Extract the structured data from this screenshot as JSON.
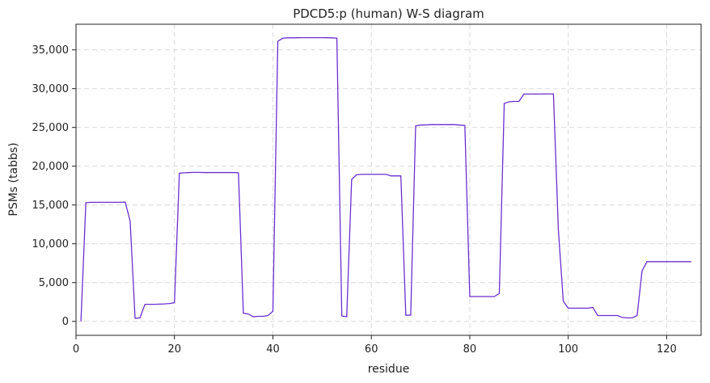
{
  "chart_data": {
    "type": "line",
    "title": "PDCD5:p (human) W-S diagram",
    "xlabel": "residue",
    "ylabel": "PSMs (tabbs)",
    "xlim": [
      0,
      127
    ],
    "ylim": [
      -1800,
      38300
    ],
    "xticks": [
      0,
      20,
      40,
      60,
      80,
      100,
      120
    ],
    "yticks": [
      0,
      5000,
      10000,
      15000,
      20000,
      25000,
      30000,
      35000
    ],
    "ytick_labels": [
      "0",
      "5,000",
      "10,000",
      "15,000",
      "20,000",
      "25,000",
      "30,000",
      "35,000"
    ],
    "grid": true,
    "line_color": "#6a2fd1",
    "series": [
      {
        "x": [
          1,
          2,
          3,
          4,
          5,
          6,
          7,
          8,
          9,
          10,
          11,
          12,
          13,
          14,
          15,
          16,
          17,
          18,
          19,
          20,
          21,
          22,
          23,
          24,
          25,
          26,
          27,
          28,
          29,
          30,
          31,
          32,
          33,
          34,
          35,
          36,
          37,
          38,
          39,
          40,
          41,
          42,
          43,
          44,
          45,
          46,
          47,
          48,
          49,
          50,
          51,
          52,
          53,
          54,
          55,
          56,
          57,
          58,
          59,
          60,
          61,
          62,
          63,
          64,
          65,
          66,
          67,
          68,
          69,
          70,
          71,
          72,
          73,
          74,
          75,
          76,
          77,
          78,
          79,
          80,
          81,
          82,
          83,
          84,
          85,
          86,
          87,
          88,
          89,
          90,
          91,
          92,
          93,
          94,
          95,
          96,
          97,
          98,
          99,
          100,
          101,
          102,
          103,
          104,
          105,
          106,
          107,
          108,
          109,
          110,
          111,
          112,
          113,
          114,
          115,
          116,
          117,
          118,
          119,
          120,
          121,
          122,
          123,
          124,
          125
        ],
        "y": [
          0,
          15300,
          15350,
          15350,
          15350,
          15350,
          15350,
          15350,
          15350,
          15380,
          12900,
          400,
          450,
          2200,
          2200,
          2200,
          2220,
          2250,
          2300,
          2400,
          19100,
          19150,
          19180,
          19200,
          19200,
          19180,
          19180,
          19180,
          19180,
          19180,
          19180,
          19180,
          19150,
          1050,
          950,
          600,
          650,
          650,
          750,
          1300,
          36100,
          36500,
          36550,
          36550,
          36560,
          36570,
          36570,
          36570,
          36570,
          36570,
          36560,
          36550,
          36500,
          700,
          600,
          18300,
          18900,
          18950,
          18950,
          18950,
          18950,
          18950,
          18950,
          18750,
          18750,
          18750,
          800,
          800,
          25200,
          25300,
          25320,
          25350,
          25350,
          25350,
          25350,
          25350,
          25350,
          25300,
          25250,
          3200,
          3200,
          3200,
          3200,
          3200,
          3200,
          3600,
          28100,
          28300,
          28350,
          28350,
          29300,
          29300,
          29300,
          29300,
          29320,
          29320,
          29320,
          11800,
          2600,
          1700,
          1700,
          1700,
          1700,
          1700,
          1800,
          750,
          750,
          750,
          750,
          750,
          500,
          450,
          450,
          750,
          6500,
          7700,
          7700,
          7700,
          7700,
          7700,
          7700,
          7700,
          7700,
          7700,
          7700
        ]
      }
    ]
  }
}
